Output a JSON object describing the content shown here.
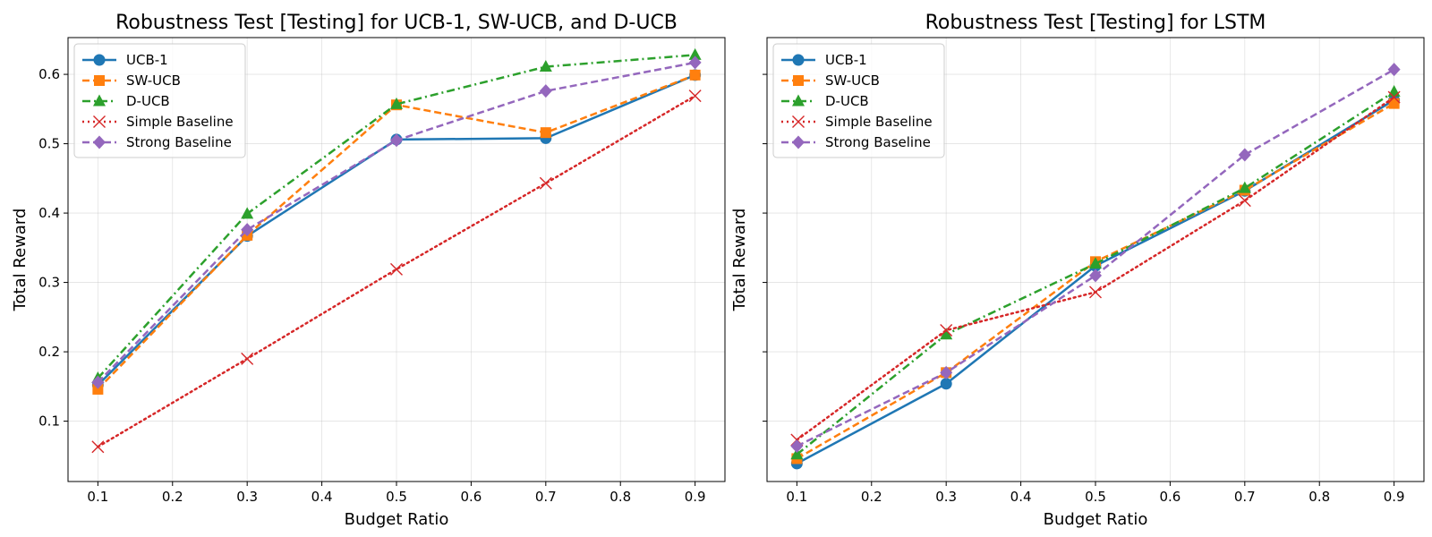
{
  "chart_data": [
    {
      "type": "line",
      "title": "Robustness Test [Testing] for UCB-1, SW-UCB, and D-UCB",
      "xlabel": "Budget Ratio",
      "ylabel": "Total Reward",
      "x": [
        0.1,
        0.3,
        0.5,
        0.7,
        0.9
      ],
      "xlim": [
        0.06,
        0.94
      ],
      "ylim": [
        0.013,
        0.653
      ],
      "xticks": [
        "0.1",
        "0.2",
        "0.3",
        "0.4",
        "0.5",
        "0.6",
        "0.7",
        "0.8",
        "0.9"
      ],
      "yticks": [
        "0.1",
        "0.2",
        "0.3",
        "0.4",
        "0.5",
        "0.6"
      ],
      "show_ytick_labels": true,
      "grid": true,
      "legend": "upper-left",
      "series": [
        {
          "name": "UCB-1",
          "values": [
            0.152,
            0.367,
            0.506,
            0.508,
            0.599
          ],
          "color": "#1f77b4",
          "dash": "solid",
          "marker": "circle"
        },
        {
          "name": "SW-UCB",
          "values": [
            0.146,
            0.368,
            0.556,
            0.516,
            0.599
          ],
          "color": "#ff7f0e",
          "dash": "dashed",
          "marker": "square"
        },
        {
          "name": "D-UCB",
          "values": [
            0.162,
            0.399,
            0.557,
            0.611,
            0.628
          ],
          "color": "#2ca02c",
          "dash": "dashdot",
          "marker": "triangle"
        },
        {
          "name": "Simple Baseline",
          "values": [
            0.063,
            0.19,
            0.319,
            0.443,
            0.569
          ],
          "color": "#d62728",
          "dash": "dotted",
          "marker": "x"
        },
        {
          "name": "Strong Baseline",
          "values": [
            0.156,
            0.376,
            0.505,
            0.576,
            0.617
          ],
          "color": "#9467bd",
          "dash": "dashed",
          "marker": "diamond"
        }
      ]
    },
    {
      "type": "line",
      "title": "Robustness Test [Testing] for LSTM",
      "xlabel": "Budget Ratio",
      "ylabel": "Total Reward",
      "x": [
        0.1,
        0.3,
        0.5,
        0.7,
        0.9
      ],
      "xlim": [
        0.06,
        0.94
      ],
      "ylim": [
        0.013,
        0.653
      ],
      "xticks": [
        "0.1",
        "0.2",
        "0.3",
        "0.4",
        "0.5",
        "0.6",
        "0.7",
        "0.8",
        "0.9"
      ],
      "yticks": [
        "0.1",
        "0.2",
        "0.3",
        "0.4",
        "0.5",
        "0.6"
      ],
      "show_ytick_labels": false,
      "grid": true,
      "legend": "upper-left",
      "series": [
        {
          "name": "UCB-1",
          "values": [
            0.039,
            0.154,
            0.324,
            0.432,
            0.563
          ],
          "color": "#1f77b4",
          "dash": "solid",
          "marker": "circle"
        },
        {
          "name": "SW-UCB",
          "values": [
            0.046,
            0.17,
            0.33,
            0.433,
            0.558
          ],
          "color": "#ff7f0e",
          "dash": "dashed",
          "marker": "square"
        },
        {
          "name": "D-UCB",
          "values": [
            0.052,
            0.225,
            0.327,
            0.436,
            0.575
          ],
          "color": "#2ca02c",
          "dash": "dashdot",
          "marker": "triangle"
        },
        {
          "name": "Simple Baseline",
          "values": [
            0.073,
            0.231,
            0.286,
            0.418,
            0.567
          ],
          "color": "#d62728",
          "dash": "dotted",
          "marker": "x"
        },
        {
          "name": "Strong Baseline",
          "values": [
            0.064,
            0.17,
            0.31,
            0.484,
            0.607
          ],
          "color": "#9467bd",
          "dash": "dashed",
          "marker": "diamond"
        }
      ]
    }
  ]
}
